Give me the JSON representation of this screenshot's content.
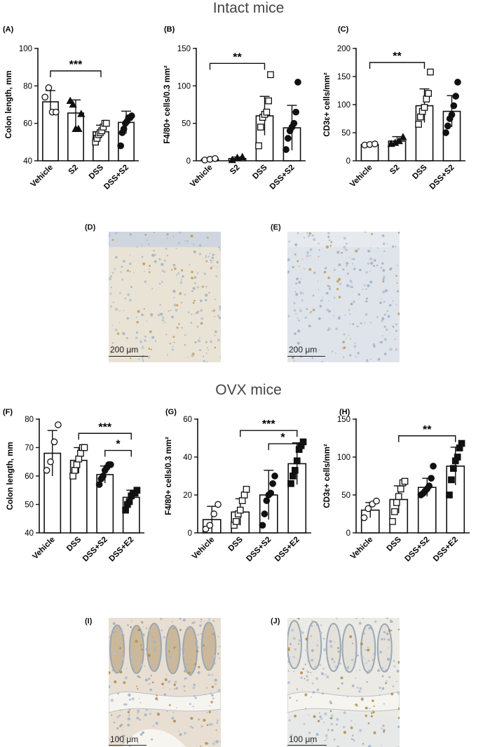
{
  "sections": {
    "intact_title": "Intact mice",
    "ovx_title": "OVX mice"
  },
  "chart_data": [
    {
      "id": "A",
      "panel_label": "(A)",
      "type": "bar",
      "ylabel": "Colon length, mm",
      "ylim": [
        40,
        100
      ],
      "yticks": [
        40,
        60,
        80,
        100
      ],
      "categories": [
        "Vehicle",
        "S2",
        "DSS",
        "DSS+S2"
      ],
      "values": [
        71.5,
        65.5,
        55.5,
        60.5
      ],
      "errors": [
        6,
        7,
        3.5,
        6
      ],
      "markers": [
        "open-circle",
        "filled-triangle",
        "open-square",
        "filled-circle"
      ],
      "points": [
        [
          74,
          79,
          66,
          66
        ],
        [
          72,
          70,
          57,
          57,
          65
        ],
        [
          50,
          52,
          54,
          55,
          56,
          58,
          60,
          60
        ],
        [
          48,
          55,
          57,
          60,
          61,
          63,
          63,
          64
        ]
      ],
      "significance": [
        {
          "from": 0,
          "to": 2,
          "label": "***",
          "y": 88
        }
      ]
    },
    {
      "id": "B",
      "panel_label": "(B)",
      "type": "bar",
      "ylabel": "F4/80+ cells/0.3 mm²",
      "ylim": [
        0,
        150
      ],
      "yticks": [
        0,
        50,
        100,
        150
      ],
      "categories": [
        "Vehicle",
        "S2",
        "DSS",
        "DSS+S2"
      ],
      "values": [
        2,
        3,
        60,
        44
      ],
      "errors": [
        2,
        2,
        26,
        30
      ],
      "markers": [
        "open-circle",
        "filled-triangle",
        "open-square",
        "filled-circle"
      ],
      "points": [
        [
          1,
          2,
          3
        ],
        [
          1,
          4,
          5
        ],
        [
          20,
          45,
          58,
          62,
          65,
          80,
          115
        ],
        [
          15,
          30,
          40,
          45,
          50,
          65,
          105
        ]
      ],
      "significance": [
        {
          "from": 0,
          "to": 2,
          "label": "**",
          "y": 130
        }
      ]
    },
    {
      "id": "C",
      "panel_label": "(C)",
      "type": "bar",
      "ylabel": "CD3ε+ cells/mm²",
      "ylim": [
        0,
        200
      ],
      "yticks": [
        0,
        50,
        100,
        150,
        200
      ],
      "categories": [
        "Vehicle",
        "S2",
        "DSS",
        "DSS+S2"
      ],
      "values": [
        29,
        35,
        98,
        88
      ],
      "errors": [
        2,
        8,
        30,
        28
      ],
      "markers": [
        "open-circle",
        "filled-triangle",
        "open-square",
        "filled-circle"
      ],
      "points": [
        [
          28,
          29,
          30
        ],
        [
          30,
          32,
          35,
          42
        ],
        [
          65,
          78,
          88,
          95,
          110,
          120,
          158
        ],
        [
          50,
          62,
          75,
          82,
          98,
          115,
          140
        ]
      ],
      "significance": [
        {
          "from": 0,
          "to": 2,
          "label": "**",
          "y": 175
        }
      ]
    },
    {
      "id": "F",
      "panel_label": "(F)",
      "type": "bar",
      "ylabel": "Colon length, mm",
      "ylim": [
        40,
        80
      ],
      "yticks": [
        40,
        50,
        60,
        70,
        80
      ],
      "categories": [
        "Vehicle",
        "DSS",
        "DSS+S2",
        "DSS+E2"
      ],
      "values": [
        68,
        65.5,
        60.5,
        52.5
      ],
      "errors": [
        8,
        4.5,
        3,
        2.5
      ],
      "markers": [
        "open-circle",
        "open-square",
        "filled-circle",
        "filled-square"
      ],
      "points": [
        [
          62,
          65,
          72,
          78
        ],
        [
          60,
          62,
          64,
          66,
          68,
          70,
          70
        ],
        [
          57,
          59,
          60,
          62,
          63,
          64,
          64
        ],
        [
          48,
          50,
          51,
          53,
          54,
          54,
          55
        ]
      ],
      "significance": [
        {
          "from": 1,
          "to": 3,
          "label": "***",
          "y": 75
        },
        {
          "from": 2,
          "to": 3,
          "label": "*",
          "y": 69
        }
      ]
    },
    {
      "id": "G",
      "panel_label": "(G)",
      "type": "bar",
      "ylabel": "F4/80+ cells/0.3 mm²",
      "ylim": [
        0,
        60
      ],
      "yticks": [
        0,
        20,
        40,
        60
      ],
      "categories": [
        "Vehicle",
        "DSS",
        "DSS+S2",
        "DSS+E2"
      ],
      "values": [
        7,
        11,
        20,
        36.5
      ],
      "errors": [
        7,
        7,
        13,
        11
      ],
      "markers": [
        "open-circle",
        "open-square",
        "filled-circle",
        "filled-square"
      ],
      "points": [
        [
          2,
          4,
          10,
          15
        ],
        [
          4,
          6,
          10,
          12,
          17,
          20,
          23
        ],
        [
          4,
          10,
          17,
          20,
          21,
          26,
          30
        ],
        [
          26,
          30,
          33,
          38,
          44,
          46,
          48
        ]
      ],
      "significance": [
        {
          "from": 1,
          "to": 3,
          "label": "***",
          "y": 54
        },
        {
          "from": 2,
          "to": 3,
          "label": "*",
          "y": 47
        }
      ]
    },
    {
      "id": "H",
      "panel_label": "(H)",
      "type": "bar",
      "ylabel": "CD3ε+ cells/mm²",
      "ylim": [
        0,
        150
      ],
      "yticks": [
        0,
        50,
        100,
        150
      ],
      "categories": [
        "Vehicle",
        "DSS",
        "DSS+S2",
        "DSS+E2"
      ],
      "values": [
        30,
        44,
        60,
        88
      ],
      "errors": [
        10,
        18,
        12,
        25
      ],
      "markers": [
        "open-circle",
        "open-square",
        "filled-circle",
        "filled-square"
      ],
      "points": [
        [
          20,
          32,
          38,
          42
        ],
        [
          15,
          28,
          40,
          48,
          58,
          66,
          68
        ],
        [
          50,
          52,
          55,
          58,
          62,
          72,
          88
        ],
        [
          50,
          70,
          85,
          95,
          100,
          112,
          118
        ]
      ],
      "significance": [
        {
          "from": 1,
          "to": 3,
          "label": "**",
          "y": 128
        }
      ]
    }
  ],
  "micrographs": [
    {
      "id": "D",
      "panel_label": "(D)",
      "scale": "200 μm",
      "style": "stroma"
    },
    {
      "id": "E",
      "panel_label": "(E)",
      "scale": "200 μm",
      "style": "stroma-blue"
    },
    {
      "id": "I",
      "panel_label": "(I)",
      "scale": "100 μm",
      "style": "crypts"
    },
    {
      "id": "J",
      "panel_label": "(J)",
      "scale": "100 μm",
      "style": "crypts-light"
    }
  ]
}
